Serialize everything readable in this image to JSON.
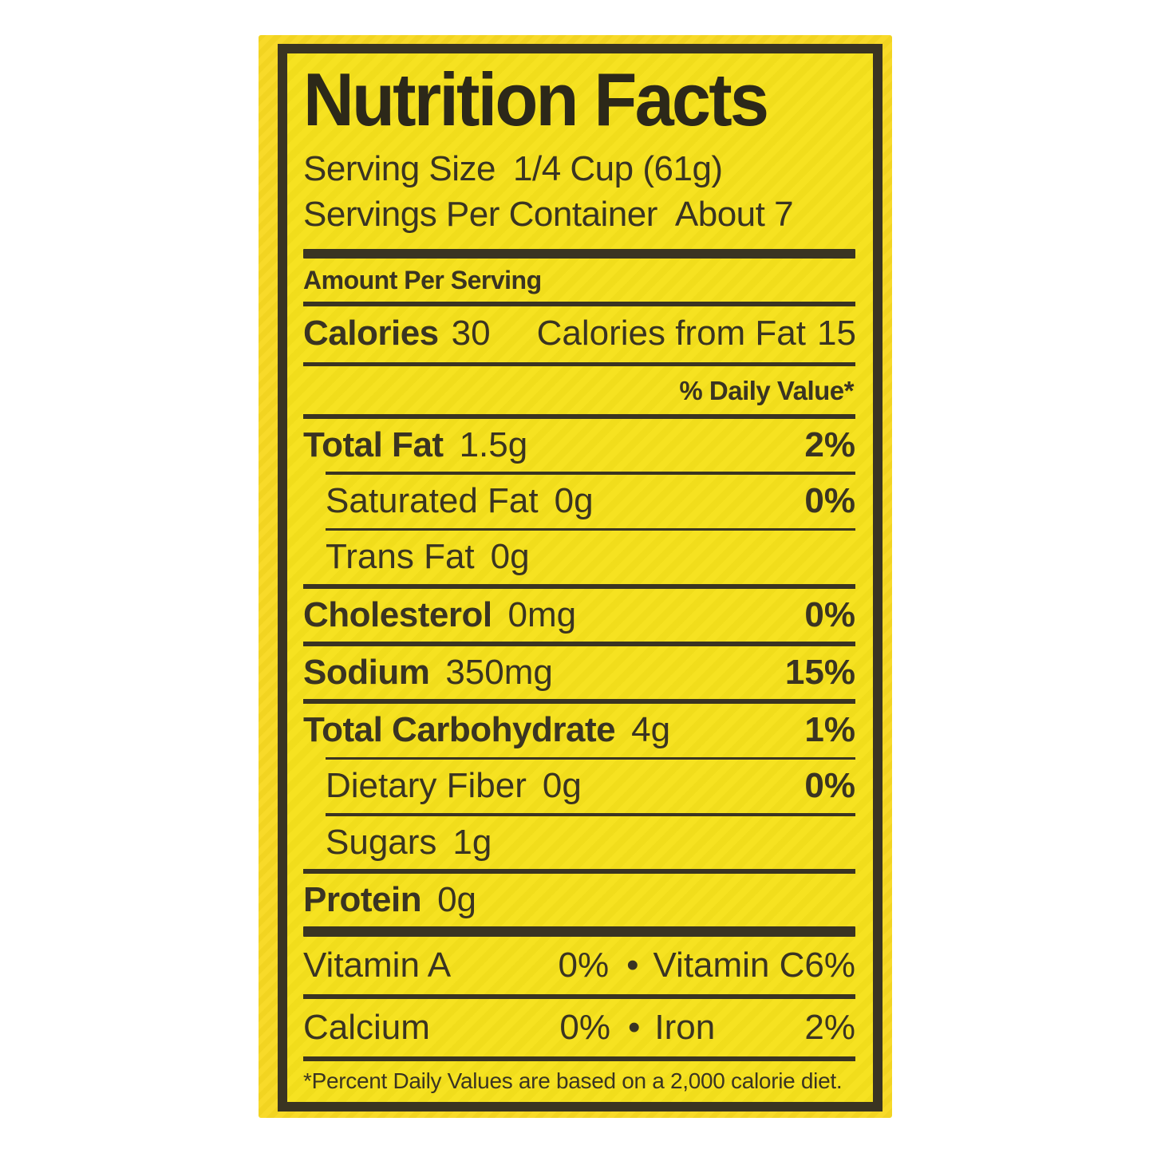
{
  "colors": {
    "page_bg": "#ffffff",
    "package_yellow": "#f8d922",
    "label_yellow": "#f6e11c",
    "ink": "#3a3422",
    "ink_dark": "#2c2819"
  },
  "label": {
    "title": "Nutrition Facts",
    "serving": {
      "size_label": "Serving Size",
      "size_value": "1/4 Cup (61g)",
      "per_container_label": "Servings Per Container",
      "per_container_value": "About 7"
    },
    "amount_per_serving": "Amount Per Serving",
    "calories": {
      "label": "Calories",
      "value": "30",
      "from_fat_label": "Calories from Fat",
      "from_fat_value": "15"
    },
    "daily_value_header": "% Daily Value*",
    "nutrients": [
      {
        "name": "Total Fat",
        "amount": "1.5g",
        "dv": "2%"
      },
      {
        "name": "Saturated Fat",
        "amount": "0g",
        "dv": "0%"
      },
      {
        "name": "Trans Fat",
        "amount": "0g",
        "dv": ""
      },
      {
        "name": "Cholesterol",
        "amount": "0mg",
        "dv": "0%"
      },
      {
        "name": "Sodium",
        "amount": "350mg",
        "dv": "15%"
      },
      {
        "name": "Total Carbohydrate",
        "amount": "4g",
        "dv": "1%"
      },
      {
        "name": "Dietary Fiber",
        "amount": "0g",
        "dv": "0%"
      },
      {
        "name": "Sugars",
        "amount": "1g",
        "dv": ""
      },
      {
        "name": "Protein",
        "amount": "0g",
        "dv": ""
      }
    ],
    "micronutrients": {
      "bullet": "•",
      "rows": [
        {
          "left_name": "Vitamin A",
          "left_value": "0%",
          "right_name": "Vitamin C",
          "right_value": "6%"
        },
        {
          "left_name": "Calcium",
          "left_value": "0%",
          "right_name": "Iron",
          "right_value": "2%"
        }
      ]
    },
    "footnote": "*Percent Daily Values are based on a 2,000 calorie diet."
  }
}
